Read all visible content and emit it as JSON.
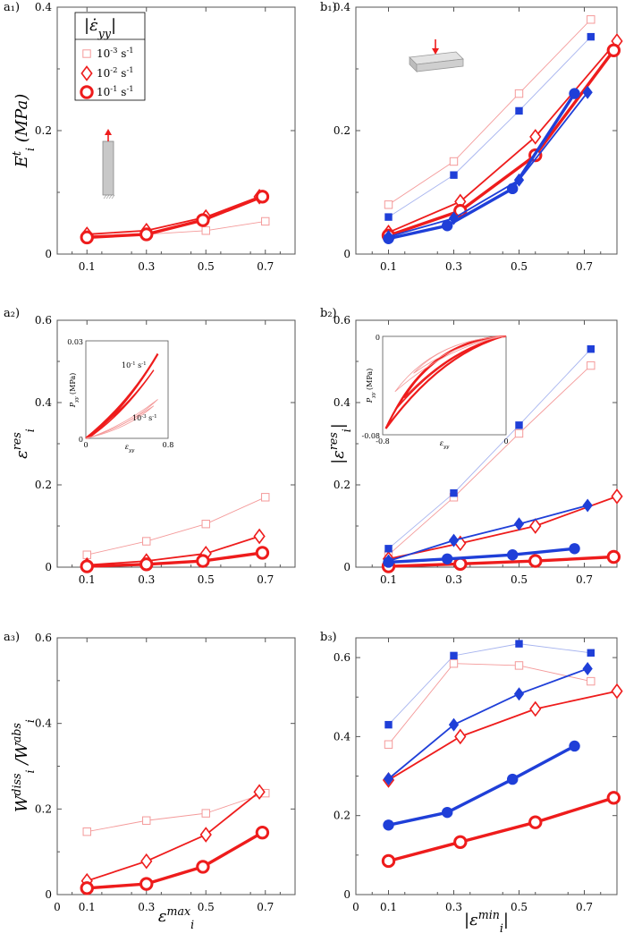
{
  "colors": {
    "red": "#ee1c1c",
    "red_light": "#f49a9a",
    "blue": "#1f3fd8",
    "blue_light": "#a7b4ef",
    "frame": "#555555",
    "specimen": "#c8c8c8"
  },
  "legend": {
    "title": "|ε̇yy|",
    "items": [
      {
        "label": "10^-3 s^-1",
        "marker": "square-open",
        "style": "thin"
      },
      {
        "label": "10^-2 s^-1",
        "marker": "diamond-open",
        "style": "medium"
      },
      {
        "label": "10^-1 s^-1",
        "marker": "circle-open",
        "style": "thick"
      }
    ]
  },
  "chart_data": [
    {
      "id": "a1",
      "panel_label": "a₁)",
      "type": "line",
      "xlim": [
        0,
        0.8
      ],
      "ylim": [
        0,
        0.4
      ],
      "xticks": [
        "0.1",
        "0.3",
        "0.5",
        "0.7"
      ],
      "yticks": [
        "0",
        "0.2",
        "0.4"
      ],
      "ylabel": "Eᵢᵗ (MPa)",
      "xlabel": "",
      "inset": "specimen-tension",
      "series": [
        {
          "name": "10^-3 s^-1",
          "color": "red",
          "marker": "square-open",
          "style": "thin",
          "x": [
            0.1,
            0.3,
            0.5,
            0.7
          ],
          "y": [
            0.03,
            0.032,
            0.038,
            0.053
          ]
        },
        {
          "name": "10^-2 s^-1",
          "color": "red",
          "marker": "diamond-open",
          "style": "medium",
          "x": [
            0.1,
            0.3,
            0.5,
            0.68
          ],
          "y": [
            0.032,
            0.038,
            0.06,
            0.093
          ]
        },
        {
          "name": "10^-1 s^-1",
          "color": "red",
          "marker": "circle-open",
          "style": "thick",
          "x": [
            0.1,
            0.3,
            0.49,
            0.69
          ],
          "y": [
            0.027,
            0.032,
            0.055,
            0.093
          ]
        }
      ]
    },
    {
      "id": "b1",
      "panel_label": "b₁)",
      "type": "line",
      "xlim": [
        0,
        0.8
      ],
      "ylim": [
        0,
        0.4
      ],
      "xticks": [
        "0.1",
        "0.3",
        "0.5",
        "0.7"
      ],
      "yticks": [
        "0",
        "0.2",
        "0.4"
      ],
      "ylabel": "",
      "xlabel": "",
      "inset": "specimen-compression",
      "series": [
        {
          "name": "red 10^-3 s^-1",
          "color": "red",
          "marker": "square-open",
          "style": "thin",
          "x": [
            0.1,
            0.3,
            0.5,
            0.72
          ],
          "y": [
            0.08,
            0.15,
            0.26,
            0.38
          ]
        },
        {
          "name": "red 10^-2 s^-1",
          "color": "red",
          "marker": "diamond-open",
          "style": "medium",
          "x": [
            0.1,
            0.32,
            0.55,
            0.8
          ],
          "y": [
            0.035,
            0.085,
            0.19,
            0.345
          ]
        },
        {
          "name": "red 10^-1 s^-1",
          "color": "red",
          "marker": "circle-open",
          "style": "thick",
          "x": [
            0.1,
            0.32,
            0.55,
            0.79
          ],
          "y": [
            0.03,
            0.07,
            0.16,
            0.33
          ]
        },
        {
          "name": "blue 10^-3 s^-1",
          "color": "blue",
          "marker": "square-filled",
          "style": "thin",
          "x": [
            0.1,
            0.3,
            0.5,
            0.72
          ],
          "y": [
            0.06,
            0.128,
            0.232,
            0.352
          ]
        },
        {
          "name": "blue 10^-2 s^-1",
          "color": "blue",
          "marker": "diamond-filled",
          "style": "medium",
          "x": [
            0.1,
            0.3,
            0.5,
            0.71
          ],
          "y": [
            0.028,
            0.058,
            0.12,
            0.262
          ]
        },
        {
          "name": "blue 10^-1 s^-1",
          "color": "blue",
          "marker": "circle-filled",
          "style": "thick",
          "x": [
            0.1,
            0.28,
            0.48,
            0.67
          ],
          "y": [
            0.025,
            0.046,
            0.106,
            0.26
          ]
        }
      ]
    },
    {
      "id": "a2",
      "panel_label": "a₂)",
      "type": "line",
      "xlim": [
        0,
        0.8
      ],
      "ylim": [
        0,
        0.6
      ],
      "xticks": [
        "0.1",
        "0.3",
        "0.5",
        "0.7"
      ],
      "yticks": [
        "0",
        "0.2",
        "0.4",
        "0.6"
      ],
      "ylabel": "εᵢʳᵉˢ",
      "xlabel": "",
      "inset": {
        "type": "hysteresis",
        "xlabel": "εyy",
        "ylabel": "Pyy (MPa)",
        "xticks": [
          "0",
          "0.8"
        ],
        "yticks": [
          "0",
          "0.03"
        ],
        "labels": [
          "10^-1 s^-1",
          "10^-3 s^-1"
        ]
      },
      "series": [
        {
          "name": "10^-3 s^-1",
          "color": "red",
          "marker": "square-open",
          "style": "thin",
          "x": [
            0.1,
            0.3,
            0.5,
            0.7
          ],
          "y": [
            0.03,
            0.063,
            0.105,
            0.17
          ]
        },
        {
          "name": "10^-2 s^-1",
          "color": "red",
          "marker": "diamond-open",
          "style": "medium",
          "x": [
            0.1,
            0.3,
            0.5,
            0.68
          ],
          "y": [
            0.005,
            0.015,
            0.033,
            0.075
          ]
        },
        {
          "name": "10^-1 s^-1",
          "color": "red",
          "marker": "circle-open",
          "style": "thick",
          "x": [
            0.1,
            0.3,
            0.49,
            0.69
          ],
          "y": [
            0.002,
            0.007,
            0.015,
            0.035
          ]
        }
      ]
    },
    {
      "id": "b2",
      "panel_label": "b₂)",
      "type": "line",
      "xlim": [
        0,
        0.8
      ],
      "ylim": [
        0,
        0.6
      ],
      "xticks": [
        "0.1",
        "0.3",
        "0.5",
        "0.7"
      ],
      "yticks": [
        "0",
        "0.2",
        "0.4",
        "0.6"
      ],
      "ylabel": "|εᵢʳᵉˢ|",
      "xlabel": "",
      "inset": {
        "type": "hysteresis",
        "xlabel": "εyy",
        "ylabel": "Pyy (MPa)",
        "xticks": [
          "-0.8",
          "0"
        ],
        "yticks": [
          "0",
          "-0.08"
        ]
      },
      "series": [
        {
          "name": "red 10^-3 s^-1",
          "color": "red",
          "marker": "square-open",
          "style": "thin",
          "x": [
            0.1,
            0.3,
            0.5,
            0.72
          ],
          "y": [
            0.03,
            0.17,
            0.325,
            0.49
          ]
        },
        {
          "name": "red 10^-2 s^-1",
          "color": "red",
          "marker": "diamond-open",
          "style": "medium",
          "x": [
            0.1,
            0.32,
            0.55,
            0.8
          ],
          "y": [
            0.02,
            0.058,
            0.1,
            0.172
          ]
        },
        {
          "name": "red 10^-1 s^-1",
          "color": "red",
          "marker": "circle-open",
          "style": "thick",
          "x": [
            0.1,
            0.32,
            0.55,
            0.79
          ],
          "y": [
            0.002,
            0.008,
            0.015,
            0.025
          ]
        },
        {
          "name": "blue 10^-3 s^-1",
          "color": "blue",
          "marker": "square-filled",
          "style": "thin",
          "x": [
            0.1,
            0.3,
            0.5,
            0.72
          ],
          "y": [
            0.045,
            0.18,
            0.345,
            0.53
          ]
        },
        {
          "name": "blue 10^-2 s^-1",
          "color": "blue",
          "marker": "diamond-filled",
          "style": "medium",
          "x": [
            0.1,
            0.3,
            0.5,
            0.71
          ],
          "y": [
            0.015,
            0.065,
            0.105,
            0.15
          ]
        },
        {
          "name": "blue 10^-1 s^-1",
          "color": "blue",
          "marker": "circle-filled",
          "style": "thick",
          "x": [
            0.1,
            0.28,
            0.48,
            0.67
          ],
          "y": [
            0.012,
            0.02,
            0.03,
            0.045
          ]
        }
      ]
    },
    {
      "id": "a3",
      "panel_label": "a₃)",
      "type": "line",
      "xlim": [
        0,
        0.8
      ],
      "ylim": [
        0,
        0.6
      ],
      "xticks": [
        "0",
        "0.1",
        "0.3",
        "0.5",
        "0.7"
      ],
      "yticks": [
        "0",
        "0.2",
        "0.4",
        "0.6"
      ],
      "ylabel": "Wᵢᵈⁱˢˢ / Wᵢᵃᵇˢ",
      "xlabel": "εᵢᵐᵃˣ",
      "series": [
        {
          "name": "10^-3 s^-1",
          "color": "red",
          "marker": "square-open",
          "style": "thin",
          "x": [
            0.1,
            0.3,
            0.5,
            0.7
          ],
          "y": [
            0.147,
            0.173,
            0.19,
            0.237
          ]
        },
        {
          "name": "10^-2 s^-1",
          "color": "red",
          "marker": "diamond-open",
          "style": "medium",
          "x": [
            0.1,
            0.3,
            0.5,
            0.68
          ],
          "y": [
            0.032,
            0.078,
            0.14,
            0.24
          ]
        },
        {
          "name": "10^-1 s^-1",
          "color": "red",
          "marker": "circle-open",
          "style": "thick",
          "x": [
            0.1,
            0.3,
            0.49,
            0.69
          ],
          "y": [
            0.015,
            0.025,
            0.065,
            0.145
          ]
        }
      ]
    },
    {
      "id": "b3",
      "panel_label": "b₃)",
      "type": "line",
      "xlim": [
        0,
        0.8
      ],
      "ylim": [
        0,
        0.65
      ],
      "xticks": [
        "0",
        "0.1",
        "0.3",
        "0.5",
        "0.7"
      ],
      "yticks": [
        "0",
        "0.2",
        "0.4",
        "0.6"
      ],
      "ylabel": "",
      "xlabel": "|εᵢᵐⁱⁿ|",
      "series": [
        {
          "name": "red 10^-3 s^-1",
          "color": "red",
          "marker": "square-open",
          "style": "thin",
          "x": [
            0.1,
            0.3,
            0.5,
            0.72
          ],
          "y": [
            0.38,
            0.585,
            0.58,
            0.54
          ]
        },
        {
          "name": "red 10^-2 s^-1",
          "color": "red",
          "marker": "diamond-open",
          "style": "medium",
          "x": [
            0.1,
            0.32,
            0.55,
            0.8
          ],
          "y": [
            0.29,
            0.4,
            0.47,
            0.515
          ]
        },
        {
          "name": "red 10^-1 s^-1",
          "color": "red",
          "marker": "circle-open",
          "style": "thick",
          "x": [
            0.1,
            0.32,
            0.55,
            0.79
          ],
          "y": [
            0.085,
            0.133,
            0.183,
            0.245
          ]
        },
        {
          "name": "blue 10^-3 s^-1",
          "color": "blue",
          "marker": "square-filled",
          "style": "thin",
          "x": [
            0.1,
            0.3,
            0.5,
            0.72
          ],
          "y": [
            0.43,
            0.605,
            0.635,
            0.612
          ]
        },
        {
          "name": "blue 10^-2 s^-1",
          "color": "blue",
          "marker": "diamond-filled",
          "style": "medium",
          "x": [
            0.1,
            0.3,
            0.5,
            0.71
          ],
          "y": [
            0.293,
            0.43,
            0.508,
            0.572
          ]
        },
        {
          "name": "blue 10^-1 s^-1",
          "color": "blue",
          "marker": "circle-filled",
          "style": "thick",
          "x": [
            0.1,
            0.28,
            0.48,
            0.67
          ],
          "y": [
            0.176,
            0.208,
            0.292,
            0.376
          ]
        }
      ]
    }
  ]
}
